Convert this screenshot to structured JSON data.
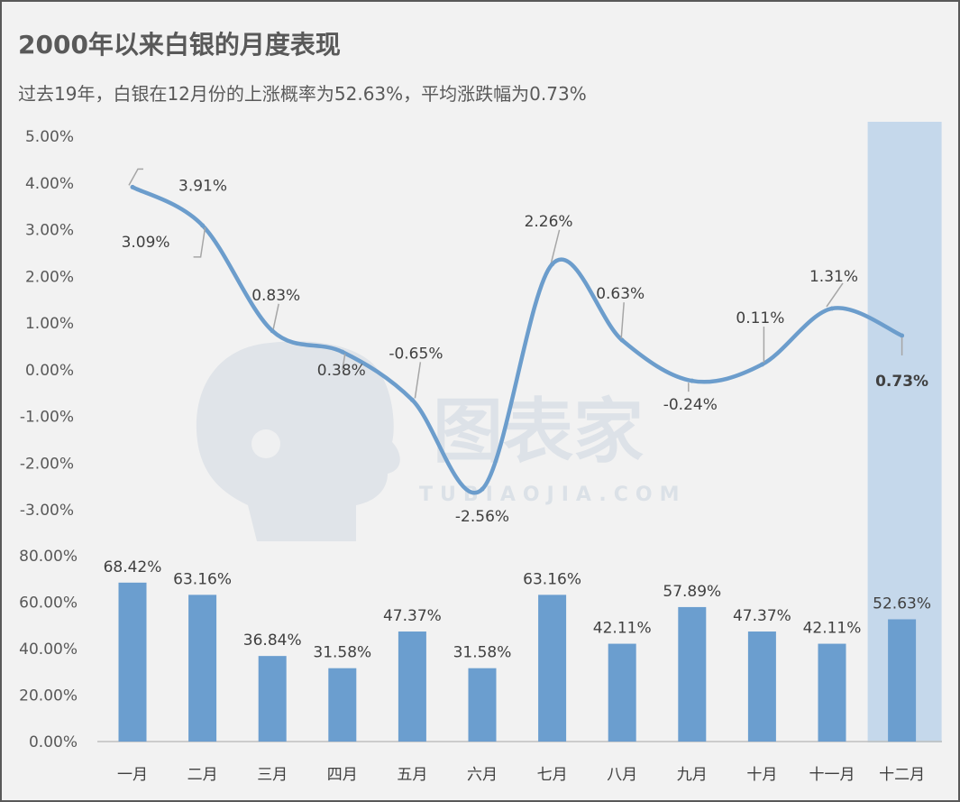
{
  "title": "2000年以来白银的月度表现",
  "subtitle": "过去19年，白银在12月份的上涨概率为52.63%，平均涨跌幅为0.73%",
  "watermark": {
    "main": "图表家",
    "sub": "TUBIAOJIA.COM"
  },
  "colors": {
    "line": "#6c9dcc",
    "bar": "#6b9ecf",
    "highlight_band": "#c5d8eb",
    "highlight_text": "#c0395a",
    "text": "#404040",
    "axis": "#bfbfbf"
  },
  "chart_data": [
    {
      "type": "line",
      "categories": [
        "一月",
        "二月",
        "三月",
        "四月",
        "五月",
        "六月",
        "七月",
        "八月",
        "九月",
        "十月",
        "十一月",
        "十二月"
      ],
      "series": [
        {
          "values": [
            3.91,
            3.09,
            0.83,
            0.38,
            -0.65,
            -2.56,
            2.26,
            0.63,
            -0.24,
            0.11,
            1.31,
            0.73
          ]
        }
      ],
      "labels": [
        "3.91%",
        "3.09%",
        "0.83%",
        "0.38%",
        "-0.65%",
        "-2.56%",
        "2.26%",
        "0.63%",
        "-0.24%",
        "0.11%",
        "1.31%",
        "0.73%"
      ],
      "yticks": [
        "5.00%",
        "4.00%",
        "3.00%",
        "2.00%",
        "1.00%",
        "0.00%",
        "-1.00%",
        "-2.00%",
        "-3.00%"
      ],
      "ylim": [
        -3,
        5
      ],
      "highlight_index": 11,
      "smooth": true
    },
    {
      "type": "bar",
      "categories": [
        "一月",
        "二月",
        "三月",
        "四月",
        "五月",
        "六月",
        "七月",
        "八月",
        "九月",
        "十月",
        "十一月",
        "十二月"
      ],
      "series": [
        {
          "values": [
            68.42,
            63.16,
            36.84,
            31.58,
            47.37,
            31.58,
            63.16,
            42.11,
            57.89,
            47.37,
            42.11,
            52.63
          ]
        }
      ],
      "labels": [
        "68.42%",
        "63.16%",
        "36.84%",
        "31.58%",
        "47.37%",
        "31.58%",
        "63.16%",
        "42.11%",
        "57.89%",
        "47.37%",
        "42.11%",
        "52.63%"
      ],
      "yticks": [
        "80.00%",
        "60.00%",
        "40.00%",
        "20.00%",
        "0.00%"
      ],
      "ylim": [
        0,
        80
      ],
      "highlight_index": 11
    }
  ]
}
